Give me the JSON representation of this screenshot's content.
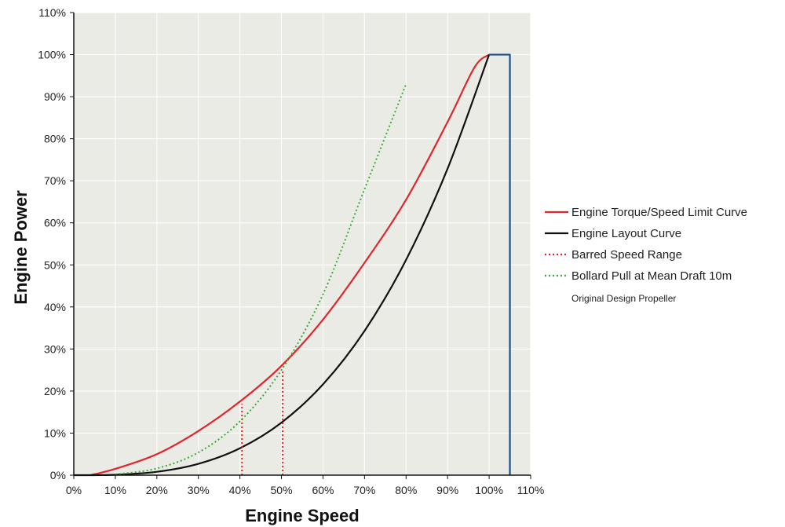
{
  "chart_data": {
    "type": "line",
    "xlabel": "Engine Speed",
    "ylabel": "Engine Power",
    "xlim": [
      0,
      110
    ],
    "ylim": [
      0,
      110
    ],
    "x_ticks": [
      "0%",
      "10%",
      "20%",
      "30%",
      "40%",
      "50%",
      "60%",
      "70%",
      "80%",
      "90%",
      "100%",
      "110%"
    ],
    "y_ticks": [
      "0%",
      "10%",
      "20%",
      "30%",
      "40%",
      "50%",
      "60%",
      "70%",
      "80%",
      "90%",
      "100%",
      "110%"
    ],
    "grid": true,
    "legend_position": "right",
    "legend_note": "Original Design Propeller",
    "background_color": "#ebebe6",
    "series": [
      {
        "name": "Engine Torque/Speed Limit Curve",
        "color": "#e0252b",
        "style": "solid",
        "x": [
          4,
          10,
          20,
          30,
          40,
          50,
          60,
          70,
          80,
          90,
          96.5,
          100
        ],
        "y": [
          0,
          1.5,
          5,
          10.5,
          17.5,
          26,
          37,
          50.5,
          65.5,
          84,
          97,
          100
        ]
      },
      {
        "name": "Engine Layout Curve",
        "color": "#111111",
        "style": "solid",
        "x": [
          0,
          10,
          20,
          30,
          40,
          50,
          60,
          70,
          80,
          90,
          100
        ],
        "y": [
          0,
          0.1,
          0.8,
          2.7,
          6.4,
          12.5,
          21.6,
          34.3,
          51.2,
          72.9,
          100
        ]
      },
      {
        "name": "Barred Speed Range",
        "color": "#e0252b",
        "style": "dotted",
        "segments": [
          {
            "x": [
              40.5,
              40.5
            ],
            "y": [
              0,
              17
            ]
          },
          {
            "x": [
              50.3,
              50.3
            ],
            "y": [
              0,
              25
            ]
          }
        ]
      },
      {
        "name": "Bollard Pull at Mean Draft 10m",
        "color": "#3aa83a",
        "style": "dotted",
        "x": [
          10,
          20,
          30,
          40,
          50,
          60,
          70,
          80
        ],
        "y": [
          0.2,
          1.6,
          5.4,
          12.8,
          25,
          43,
          68,
          93
        ]
      },
      {
        "name": "",
        "color": "#1c4e8c",
        "style": "solid",
        "x": [
          100,
          105,
          105
        ],
        "y": [
          100,
          100,
          0
        ]
      }
    ]
  }
}
